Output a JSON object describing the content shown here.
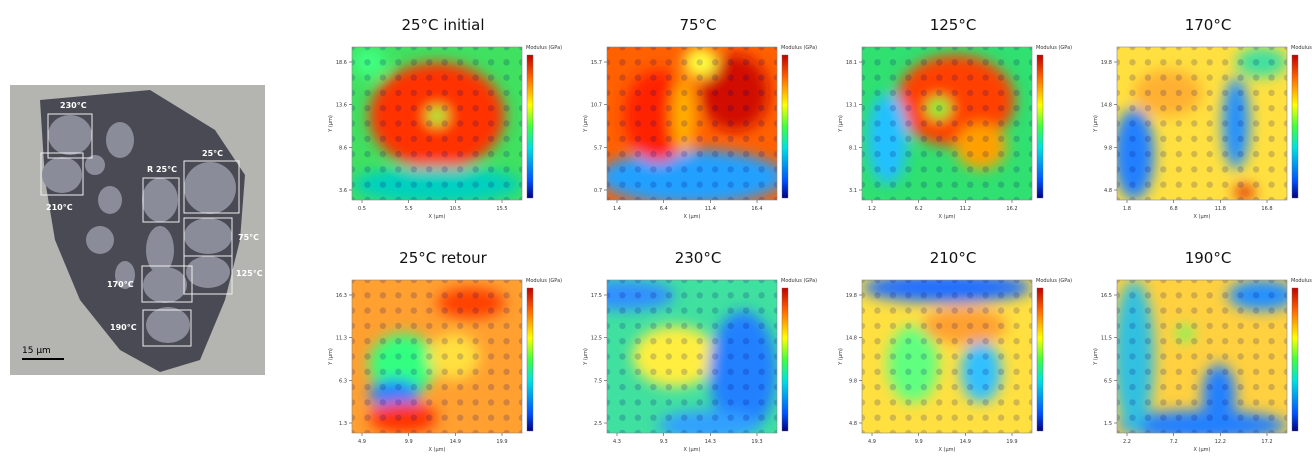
{
  "micrograph": {
    "labels": [
      "230°C",
      "210°C",
      "R 25°C",
      "25°C",
      "75°C",
      "125°C",
      "170°C",
      "190°C"
    ],
    "scale_bar": "15 µm"
  },
  "panels": [
    {
      "title": "25°C initial",
      "x_label": "X (µm)",
      "y_label": "Y (µm)",
      "colorbar_label": "Modulus (GPa)",
      "xticks": [
        0.5,
        5.5,
        10.5,
        15.5
      ],
      "yticks": [
        18.6,
        13.6,
        8.6,
        3.6
      ]
    },
    {
      "title": "75°C",
      "x_label": "X (µm)",
      "y_label": "Y (µm)",
      "colorbar_label": "Modulus (GPa)",
      "xticks": [
        1.4,
        6.4,
        11.4,
        16.4
      ],
      "yticks": [
        15.7,
        10.7,
        5.7,
        0.7
      ]
    },
    {
      "title": "125°C",
      "x_label": "X (µm)",
      "y_label": "Y (µm)",
      "colorbar_label": "Modulus (GPa)",
      "xticks": [
        1.2,
        6.2,
        11.2,
        16.2
      ],
      "yticks": [
        18.1,
        13.1,
        8.1,
        3.1
      ]
    },
    {
      "title": "170°C",
      "x_label": "X (µm)",
      "y_label": "Y (µm)",
      "colorbar_label": "Modulus (GPa)",
      "xticks": [
        1.8,
        6.8,
        11.8,
        16.8
      ],
      "yticks": [
        19.8,
        14.8,
        9.8,
        4.8
      ]
    },
    {
      "title": "25°C retour",
      "x_label": "X (µm)",
      "y_label": "Y (µm)",
      "colorbar_label": "Modulus (GPa)",
      "xticks": [
        4.9,
        9.9,
        14.9,
        19.9
      ],
      "yticks": [
        16.3,
        11.3,
        6.3,
        1.3
      ]
    },
    {
      "title": "230°C",
      "x_label": "X (µm)",
      "y_label": "Y (µm)",
      "colorbar_label": "Modulus (GPa)",
      "xticks": [
        4.3,
        9.3,
        14.3,
        19.3
      ],
      "yticks": [
        17.5,
        12.5,
        7.5,
        2.5
      ]
    },
    {
      "title": "210°C",
      "x_label": "X (µm)",
      "y_label": "Y (µm)",
      "colorbar_label": "Modulus (GPa)",
      "xticks": [
        4.9,
        9.9,
        14.9,
        19.9
      ],
      "yticks": [
        19.8,
        14.8,
        9.8,
        4.8
      ]
    },
    {
      "title": "190°C",
      "x_label": "X (µm)",
      "y_label": "Y (µm)",
      "colorbar_label": "Modulus (GPa)",
      "xticks": [
        2.2,
        7.2,
        12.2,
        17.2
      ],
      "yticks": [
        16.5,
        11.5,
        6.5,
        1.5
      ]
    }
  ]
}
